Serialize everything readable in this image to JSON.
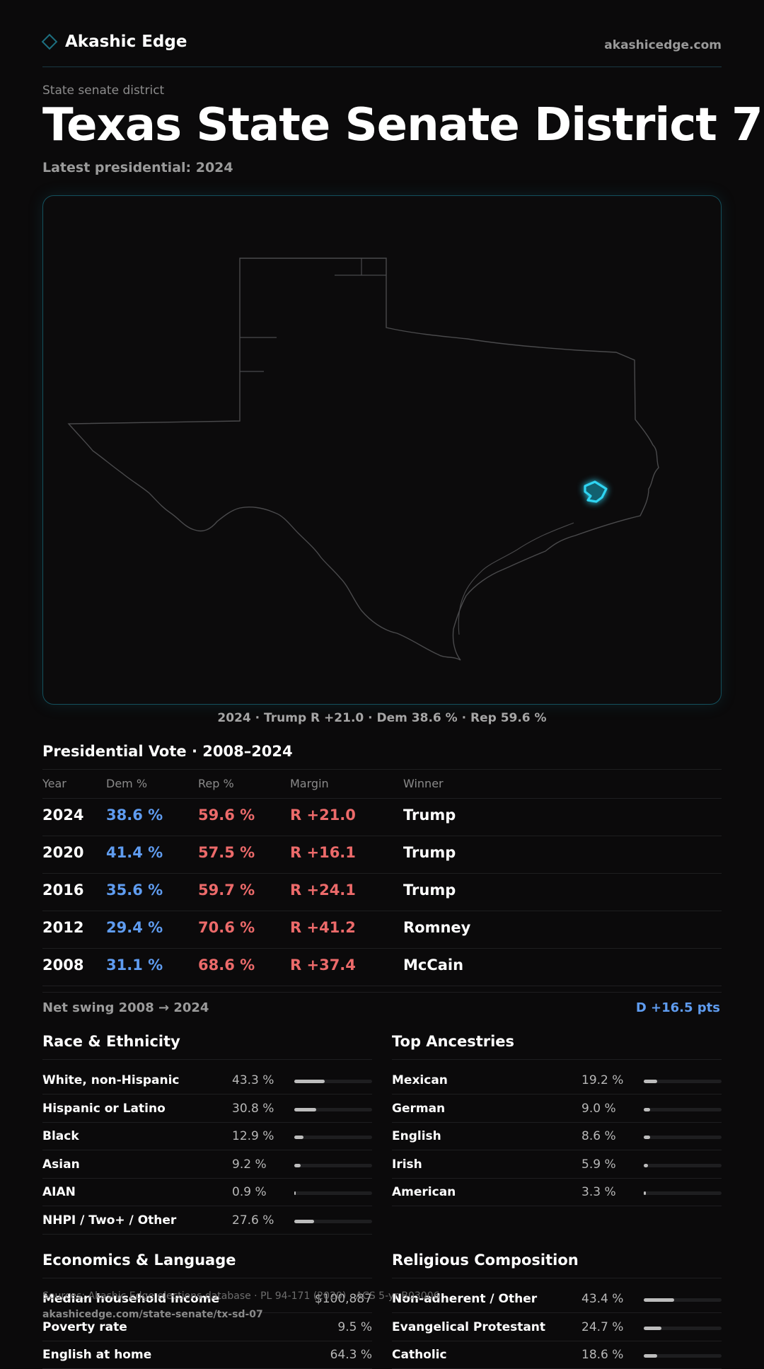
{
  "header": {
    "brand": "Akashic Edge",
    "site": "akashicedge.com"
  },
  "page": {
    "kicker": "State senate district",
    "title": "Texas State Senate District 7",
    "subtitle": "Latest presidential: 2024"
  },
  "map": {
    "state_outline_name": "texas-state-outline",
    "district_highlight_color": "#2fd4f2",
    "caption": "2024 · Trump R +21.0 · Dem 38.6 % · Rep 59.6 %"
  },
  "votes": {
    "title": "Presidential Vote · 2008–2024",
    "headers": {
      "year": "Year",
      "dem": "Dem %",
      "rep": "Rep %",
      "margin": "Margin",
      "winner": "Winner"
    },
    "rows": [
      {
        "year": "2024",
        "dem": "38.6 %",
        "rep": "59.6 %",
        "margin": "R +21.0",
        "winner": "Trump"
      },
      {
        "year": "2020",
        "dem": "41.4 %",
        "rep": "57.5 %",
        "margin": "R +16.1",
        "winner": "Trump"
      },
      {
        "year": "2016",
        "dem": "35.6 %",
        "rep": "59.7 %",
        "margin": "R +24.1",
        "winner": "Trump"
      },
      {
        "year": "2012",
        "dem": "29.4 %",
        "rep": "70.6 %",
        "margin": "R +41.2",
        "winner": "Romney"
      },
      {
        "year": "2008",
        "dem": "31.1 %",
        "rep": "68.6 %",
        "margin": "R +37.4",
        "winner": "McCain"
      }
    ],
    "swing_label": "Net swing 2008 → 2024",
    "swing_value": "D +16.5 pts"
  },
  "race": {
    "title": "Race & Ethnicity",
    "items": [
      {
        "label": "White, non-Hispanic",
        "value": "43.3 %",
        "pct": 43.3
      },
      {
        "label": "Hispanic or Latino",
        "value": "30.8 %",
        "pct": 30.8
      },
      {
        "label": "Black",
        "value": "12.9 %",
        "pct": 12.9
      },
      {
        "label": "Asian",
        "value": "9.2 %",
        "pct": 9.2
      },
      {
        "label": "AIAN",
        "value": "0.9 %",
        "pct": 0.9
      },
      {
        "label": "NHPI / Two+ / Other",
        "value": "27.6 %",
        "pct": 27.6
      }
    ]
  },
  "ancestry": {
    "title": "Top Ancestries",
    "items": [
      {
        "label": "Mexican",
        "value": "19.2 %",
        "pct": 19.2
      },
      {
        "label": "German",
        "value": "9.0 %",
        "pct": 9.0
      },
      {
        "label": "English",
        "value": "8.6 %",
        "pct": 8.6
      },
      {
        "label": "Irish",
        "value": "5.9 %",
        "pct": 5.9
      },
      {
        "label": "American",
        "value": "3.3 %",
        "pct": 3.3
      }
    ]
  },
  "economics": {
    "title": "Economics & Language",
    "items": [
      {
        "label": "Median household income",
        "value": "$100,887"
      },
      {
        "label": "Poverty rate",
        "value": "9.5 %"
      },
      {
        "label": "English at home",
        "value": "64.3 %"
      }
    ]
  },
  "religion": {
    "title": "Religious Composition",
    "items": [
      {
        "label": "Non-adherent / Other",
        "value": "43.4 %",
        "pct": 43.4
      },
      {
        "label": "Evangelical Protestant",
        "value": "24.7 %",
        "pct": 24.7
      },
      {
        "label": "Catholic",
        "value": "18.6 %",
        "pct": 18.6
      }
    ]
  },
  "footer": {
    "sources": "Sources: Akashic Edge elections database · PL 94-171 (2020) · ACS 5-yr B03006",
    "url": "akashicedge.com/state-senate/tx-sd-07"
  }
}
